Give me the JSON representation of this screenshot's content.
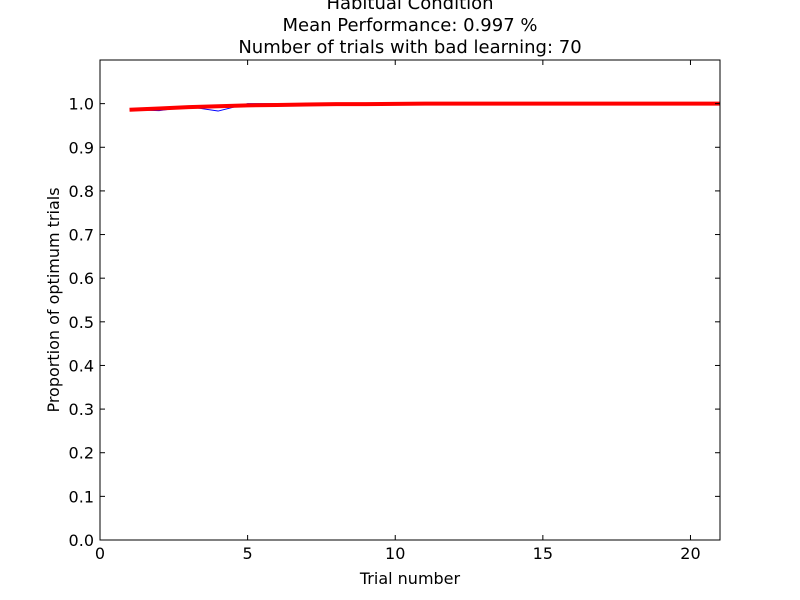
{
  "chart_data": {
    "type": "line",
    "title_lines": [
      "Habitual Condition",
      "Mean Performance: 0.997 %",
      "Number of trials with bad learning: 70"
    ],
    "xlabel": "Trial number",
    "ylabel": "Proportion of optimum trials",
    "xlim": [
      0,
      21
    ],
    "ylim": [
      0,
      1.1
    ],
    "x_ticks": [
      0,
      5,
      10,
      15,
      20
    ],
    "y_ticks": [
      0.0,
      0.1,
      0.2,
      0.3,
      0.4,
      0.5,
      0.6,
      0.7,
      0.8,
      0.9,
      1.0
    ],
    "x_tick_labels": [
      "0",
      "5",
      "10",
      "15",
      "20"
    ],
    "y_tick_labels": [
      "0.0",
      "0.1",
      "0.2",
      "0.3",
      "0.4",
      "0.5",
      "0.6",
      "0.7",
      "0.8",
      "0.9",
      "1.0"
    ],
    "grid": false,
    "series": [
      {
        "color": "#0000ff",
        "linewidth": 1,
        "x": [
          1,
          2,
          3,
          4,
          5,
          6,
          7,
          8,
          9,
          10,
          11,
          12,
          13,
          14,
          15,
          16,
          17,
          18,
          19,
          20,
          21
        ],
        "y": [
          0.986,
          0.984,
          0.993,
          0.983,
          1.0,
          1.0,
          1.0,
          1.0,
          1.0,
          1.0,
          1.0,
          1.0,
          1.0,
          1.0,
          1.0,
          1.0,
          1.0,
          1.0,
          1.0,
          1.0,
          1.0
        ]
      },
      {
        "color": "#ff0000",
        "linewidth": 4,
        "x": [
          1,
          2,
          3,
          4,
          5,
          6,
          7,
          8,
          9,
          10,
          11,
          12,
          13,
          14,
          15,
          16,
          17,
          18,
          19,
          20,
          21
        ],
        "y": [
          0.986,
          0.989,
          0.992,
          0.994,
          0.996,
          0.997,
          0.998,
          0.999,
          0.999,
          0.9995,
          1.0,
          1.0,
          1.0,
          1.0,
          1.0,
          1.0,
          1.0,
          1.0,
          1.0,
          1.0,
          1.0
        ]
      }
    ]
  }
}
